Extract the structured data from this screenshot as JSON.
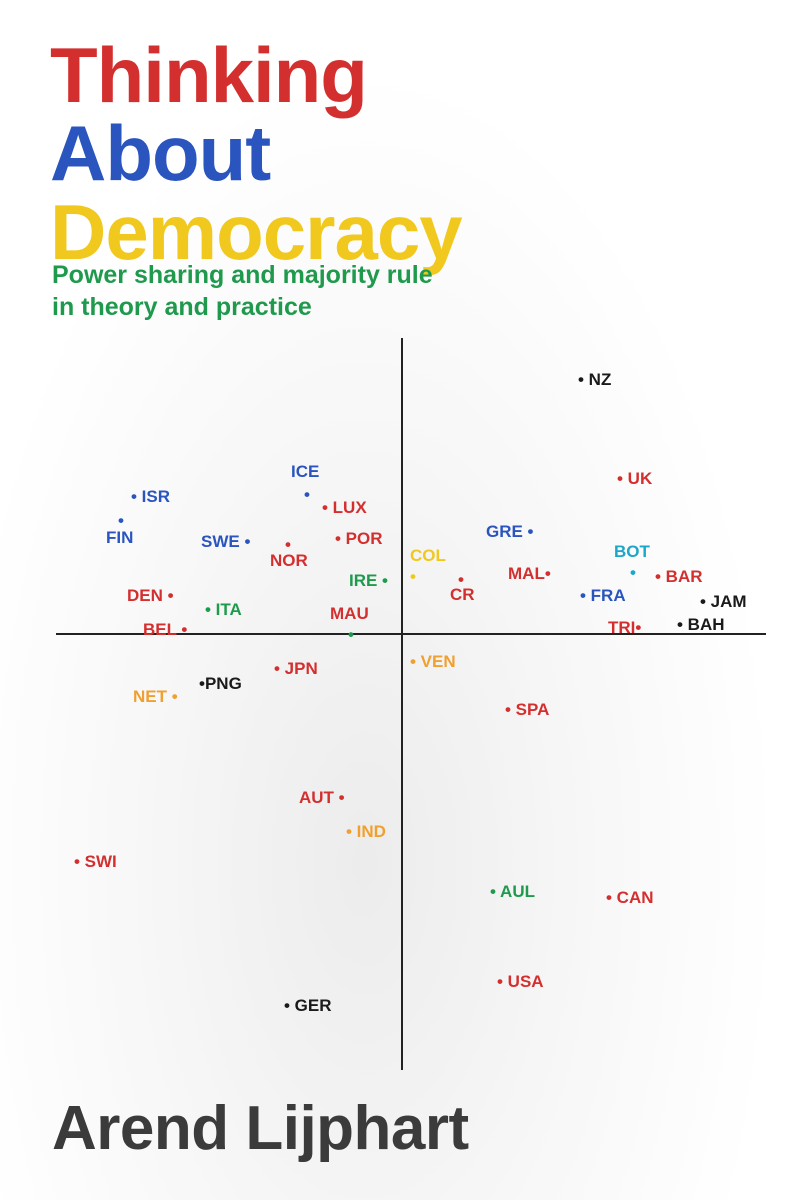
{
  "title_lines": [
    "Thinking",
    "About",
    "Democracy"
  ],
  "subtitle_lines": [
    "Power sharing and majority rule",
    "in theory and practice"
  ],
  "author": "Arend Lijphart",
  "colors": {
    "red": "#d42f2f",
    "blue": "#2a55bf",
    "yellow": "#f0c81e",
    "green": "#1f9a4d",
    "orange": "#f0a030",
    "black": "#1a1a1a",
    "teal": "#1aa7c8"
  },
  "points": [
    {
      "label": "• NZ",
      "color": "black"
    },
    {
      "label": "ICE",
      "color": "blue"
    },
    {
      "label": "•",
      "color": "blue"
    },
    {
      "label": "• ISR",
      "color": "blue"
    },
    {
      "label": "•",
      "color": "blue"
    },
    {
      "label": "FIN",
      "color": "blue"
    },
    {
      "label": "• LUX",
      "color": "red"
    },
    {
      "label": "• UK",
      "color": "red"
    },
    {
      "label": "GRE •",
      "color": "blue"
    },
    {
      "label": "SWE •",
      "color": "blue"
    },
    {
      "label": "•",
      "color": "red"
    },
    {
      "label": "NOR",
      "color": "red"
    },
    {
      "label": "• POR",
      "color": "red"
    },
    {
      "label": "COL",
      "color": "yellow"
    },
    {
      "label": "•",
      "color": "yellow"
    },
    {
      "label": "BOT",
      "color": "teal"
    },
    {
      "label": "•",
      "color": "teal"
    },
    {
      "label": "•",
      "color": "red"
    },
    {
      "label": "MAL•",
      "color": "red"
    },
    {
      "label": "• BAR",
      "color": "red"
    },
    {
      "label": "IRE •",
      "color": "green"
    },
    {
      "label": "CR",
      "color": "red"
    },
    {
      "label": "• FRA",
      "color": "blue"
    },
    {
      "label": "• JAM",
      "color": "black"
    },
    {
      "label": "DEN •",
      "color": "red"
    },
    {
      "label": "• ITA",
      "color": "green"
    },
    {
      "label": "MAU",
      "color": "red"
    },
    {
      "label": "•",
      "color": "green"
    },
    {
      "label": "BEL •",
      "color": "red"
    },
    {
      "label": "TRI•",
      "color": "red"
    },
    {
      "label": "• BAH",
      "color": "black"
    },
    {
      "label": "• VEN",
      "color": "orange"
    },
    {
      "label": "• JPN",
      "color": "red"
    },
    {
      "label": "•PNG",
      "color": "black"
    },
    {
      "label": "NET •",
      "color": "orange"
    },
    {
      "label": "• SPA",
      "color": "red"
    },
    {
      "label": "AUT •",
      "color": "red"
    },
    {
      "label": "• IND",
      "color": "orange"
    },
    {
      "label": "• SWI",
      "color": "red"
    },
    {
      "label": "• AUL",
      "color": "green"
    },
    {
      "label": "• CAN",
      "color": "red"
    },
    {
      "label": "• USA",
      "color": "red"
    },
    {
      "label": "• GER",
      "color": "black"
    }
  ]
}
